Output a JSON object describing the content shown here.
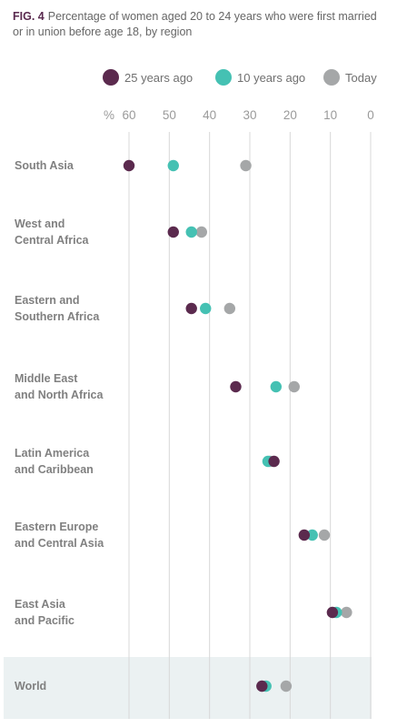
{
  "figure_label": "FIG. 4",
  "title": "Percentage of women aged 20 to 24 years who were first married or in union before age 18, by region",
  "colors": {
    "25 years ago": "#5b2a4e",
    "10 years ago": "#45c1b3",
    "Today": "#a5a7a8",
    "grid": "#d8d8d8",
    "world_band": "#ebf1f2"
  },
  "chart_data": {
    "type": "scatter",
    "subtype": "dot-plot",
    "title": "Percentage of women aged 20 to 24 years who were first married or in union before age 18, by region",
    "x_unit_label": "%",
    "xlim": [
      60,
      0
    ],
    "x_ticks": [
      60,
      50,
      40,
      30,
      20,
      10,
      0
    ],
    "x_axis_position": "top",
    "x_reversed": true,
    "legend_position": "top",
    "grid": true,
    "categories": [
      [
        "South Asia"
      ],
      [
        "West and",
        "Central Africa"
      ],
      [
        "Eastern and",
        "Southern Africa"
      ],
      [
        "Middle East",
        "and North Africa"
      ],
      [
        "Latin America",
        "and Caribbean"
      ],
      [
        "Eastern Europe",
        "and Central Asia"
      ],
      [
        "East Asia",
        "and Pacific"
      ],
      [
        "World"
      ]
    ],
    "highlighted_category": "World",
    "series": [
      {
        "name": "25 years ago",
        "values": [
          60,
          49,
          44.5,
          33.5,
          24,
          16.5,
          9.5,
          27
        ]
      },
      {
        "name": "10 years ago",
        "values": [
          49,
          44.5,
          41,
          23.5,
          25.5,
          14.5,
          8.5,
          26
        ]
      },
      {
        "name": "Today",
        "values": [
          31,
          42,
          35,
          19,
          25,
          11.5,
          6,
          21
        ]
      }
    ]
  }
}
